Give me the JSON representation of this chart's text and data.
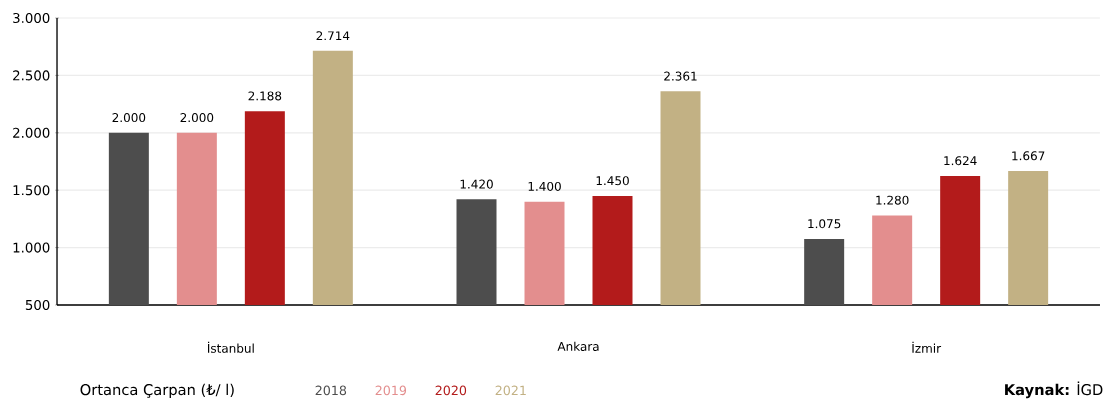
{
  "chart_data": {
    "type": "bar",
    "categories": [
      "İstanbul",
      "Ankara",
      "İzmir"
    ],
    "series": [
      {
        "name": "2018",
        "color": "#4d4d4d",
        "values": [
          2000,
          1420,
          1075
        ],
        "value_labels": [
          "2.000",
          "1.420",
          "1.075"
        ]
      },
      {
        "name": "2019",
        "color": "#e38e8e",
        "values": [
          2000,
          1400,
          1280
        ],
        "value_labels": [
          "2.000",
          "1.400",
          "1.280"
        ]
      },
      {
        "name": "2020",
        "color": "#b31b1b",
        "values": [
          2188,
          1450,
          1624
        ],
        "value_labels": [
          "2.188",
          "1.450",
          "1.624"
        ]
      },
      {
        "name": "2021",
        "color": "#c2b184",
        "values": [
          2714,
          2361,
          1667
        ],
        "value_labels": [
          "2.714",
          "2.361",
          "1.667"
        ]
      }
    ],
    "ylim": [
      500,
      3000
    ],
    "yticks": [
      {
        "value": 500,
        "label": "500"
      },
      {
        "value": 1000,
        "label": "1.000"
      },
      {
        "value": 1500,
        "label": "1.500"
      },
      {
        "value": 2000,
        "label": "2.000"
      },
      {
        "value": 2500,
        "label": "2.500"
      },
      {
        "value": 3000,
        "label": "3.000"
      }
    ],
    "grid": "y",
    "legend": "bottom",
    "legend_title": "Ortanca Çarpan (₺/ l)",
    "annotations": [
      "**Kaynak:** İGD"
    ]
  }
}
